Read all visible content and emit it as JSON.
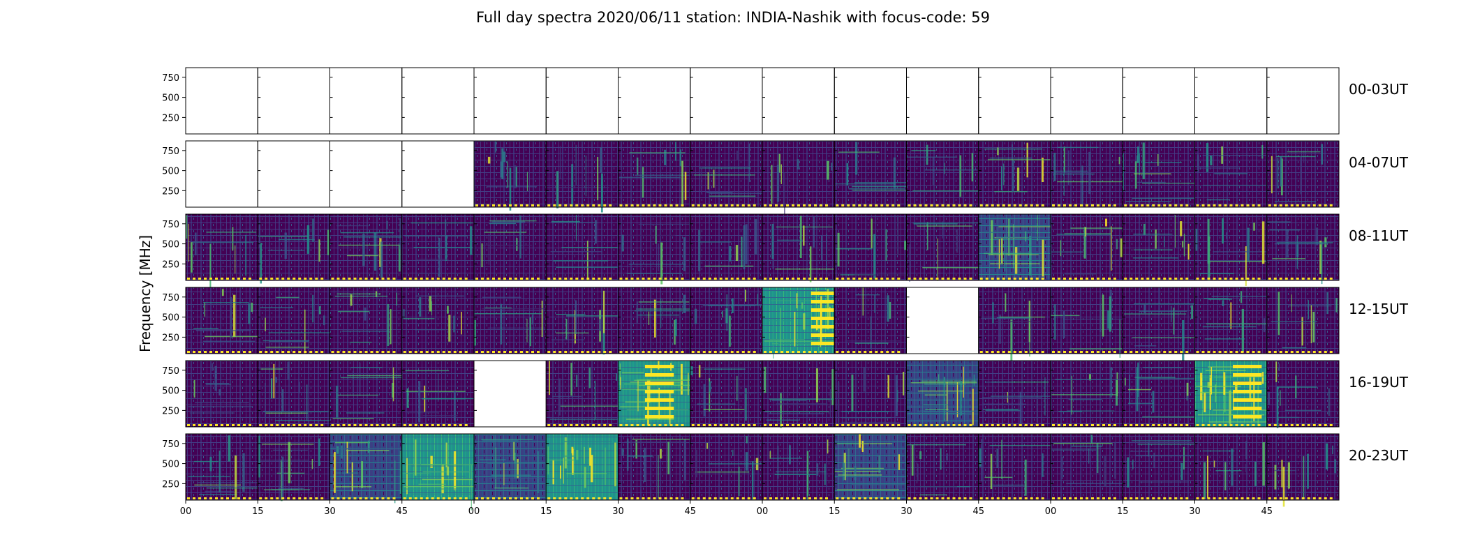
{
  "chart_data": {
    "type": "heatmap",
    "title": "Full day spectra 2020/06/11 station: INDIA-Nashik with focus-code: 59",
    "xlabel": "",
    "ylabel": "Frequency [MHz]",
    "yticks": [
      "250",
      "500",
      "750"
    ],
    "ytick_values": [
      250,
      500,
      750
    ],
    "ylim": [
      45,
      870
    ],
    "xticks": [
      "00",
      "15",
      "30",
      "45",
      "00",
      "15",
      "30",
      "45",
      "00",
      "15",
      "30",
      "45",
      "00",
      "15",
      "30",
      "45"
    ],
    "colormap": {
      "low": "#440154",
      "mid1": "#3b528b",
      "mid2": "#21918c",
      "mid3": "#5ec962",
      "high": "#fde725"
    },
    "rows": [
      {
        "label": "00-03UT",
        "panels": [
          0,
          0,
          0,
          0,
          0,
          0,
          0,
          0,
          0,
          0,
          0,
          0,
          0,
          0,
          0,
          0
        ]
      },
      {
        "label": "04-07UT",
        "panels": [
          0,
          0,
          0,
          0,
          1,
          1,
          1,
          1,
          1,
          1,
          1,
          1,
          1,
          1,
          1,
          1
        ]
      },
      {
        "label": "08-11UT",
        "panels": [
          1,
          1,
          1,
          1,
          1,
          1,
          1,
          1,
          1,
          1,
          1,
          1,
          1,
          1,
          1,
          1
        ]
      },
      {
        "label": "12-15UT",
        "panels": [
          1,
          1,
          1,
          1,
          1,
          1,
          1,
          1,
          1,
          1,
          0,
          1,
          1,
          1,
          1,
          1
        ]
      },
      {
        "label": "16-19UT",
        "panels": [
          1,
          1,
          1,
          1,
          0,
          1,
          1,
          1,
          1,
          1,
          1,
          1,
          1,
          1,
          1,
          1
        ]
      },
      {
        "label": "20-23UT",
        "panels": [
          1,
          1,
          1,
          1,
          1,
          1,
          1,
          1,
          1,
          1,
          1,
          1,
          1,
          1,
          1,
          1
        ]
      }
    ],
    "intensity": [
      [
        0,
        0,
        0,
        0,
        0,
        0,
        0,
        0,
        0,
        0,
        0,
        0,
        0,
        0,
        0,
        0
      ],
      [
        0,
        0,
        0,
        0,
        0.18,
        0.12,
        0.2,
        0.15,
        0.08,
        0.12,
        0.12,
        0.22,
        0.2,
        0.25,
        0.14,
        0.14
      ],
      [
        0.14,
        0.2,
        0.22,
        0.1,
        0.1,
        0.1,
        0.1,
        0.12,
        0.2,
        0.12,
        0.12,
        0.45,
        0.25,
        0.18,
        0.22,
        0.22
      ],
      [
        0.2,
        0.18,
        0.2,
        0.18,
        0.18,
        0.2,
        0.2,
        0.15,
        0.6,
        0.12,
        0,
        0.15,
        0.18,
        0.18,
        0.2,
        0.18
      ],
      [
        0.15,
        0.22,
        0.18,
        0.18,
        0,
        0.2,
        0.7,
        0.18,
        0.2,
        0.18,
        0.45,
        0.18,
        0.2,
        0.25,
        0.75,
        0.15
      ],
      [
        0.22,
        0.25,
        0.35,
        0.55,
        0.35,
        0.5,
        0.2,
        0.15,
        0.18,
        0.35,
        0.12,
        0.15,
        0.15,
        0.2,
        0.18,
        0.2
      ]
    ]
  }
}
